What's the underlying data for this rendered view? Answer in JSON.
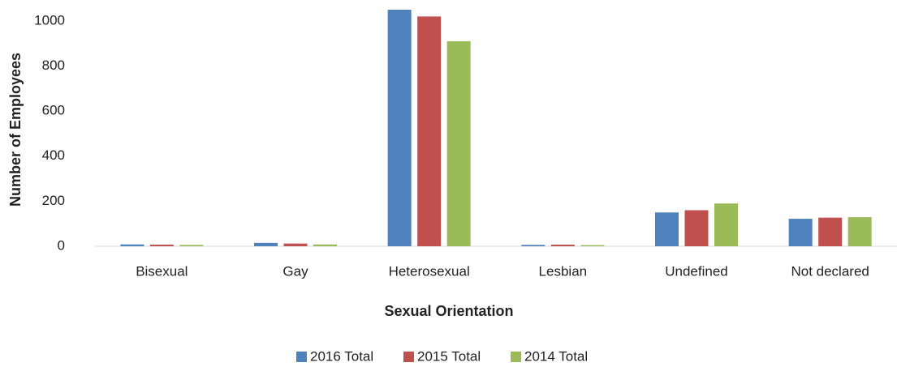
{
  "chart_data": {
    "type": "bar",
    "xlabel": "Sexual Orientation",
    "ylabel": "Number of Employees",
    "categories": [
      "Bisexual",
      "Gay",
      "Heterosexual",
      "Lesbian",
      "Undefined",
      "Not declared"
    ],
    "series": [
      {
        "name": "2016 Total",
        "color": "#4f81bd",
        "values": [
          8,
          15,
          1050,
          6,
          150,
          122
        ]
      },
      {
        "name": "2015 Total",
        "color": "#c0504d",
        "values": [
          7,
          12,
          1020,
          7,
          160,
          127
        ]
      },
      {
        "name": "2014 Total",
        "color": "#9bbb59",
        "values": [
          6,
          8,
          910,
          5,
          190,
          129
        ]
      }
    ],
    "ylim": [
      0,
      1050
    ],
    "yticks": [
      0,
      200,
      400,
      600,
      800,
      1000
    ],
    "grid": false,
    "legend": "bottom"
  }
}
